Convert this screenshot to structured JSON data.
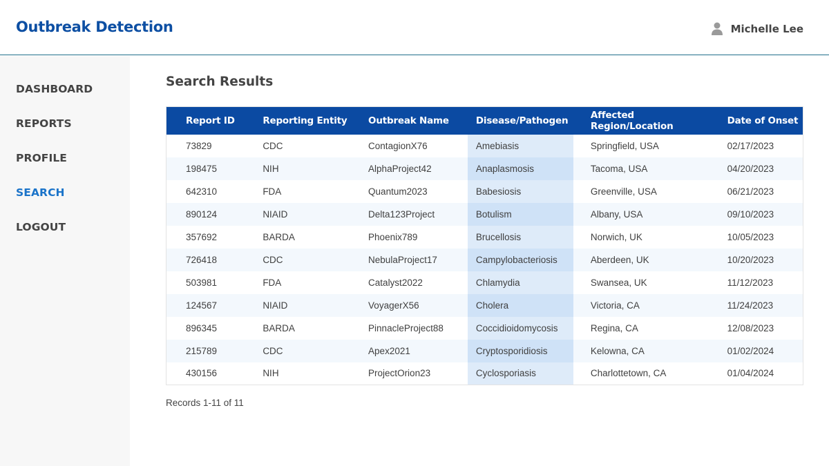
{
  "app": {
    "title": "Outbreak Detection"
  },
  "user": {
    "name": "Michelle Lee",
    "icon": "user-icon"
  },
  "nav": {
    "items": [
      {
        "label": "DASHBOARD",
        "active": false
      },
      {
        "label": "REPORTS",
        "active": false
      },
      {
        "label": "PROFILE",
        "active": false
      },
      {
        "label": "SEARCH",
        "active": true
      },
      {
        "label": "LOGOUT",
        "active": false
      }
    ]
  },
  "page": {
    "title": "Search Results"
  },
  "table": {
    "headers": [
      "Report ID",
      "Reporting Entity",
      "Outbreak Name",
      "Disease/Pathogen",
      "Affected Region/Location",
      "Date of Onset"
    ],
    "rows": [
      [
        "73829",
        "CDC",
        "ContagionX76",
        "Amebiasis",
        "Springfield, USA",
        "02/17/2023"
      ],
      [
        "198475",
        "NIH",
        "AlphaProject42",
        "Anaplasmosis",
        "Tacoma, USA",
        "04/20/2023"
      ],
      [
        "642310",
        "FDA",
        "Quantum2023",
        "Babesiosis",
        "Greenville, USA",
        "06/21/2023"
      ],
      [
        "890124",
        "NIAID",
        "Delta123Project",
        "Botulism",
        "Albany, USA",
        "09/10/2023"
      ],
      [
        "357692",
        "BARDA",
        "Phoenix789",
        "Brucellosis",
        "Norwich, UK",
        "10/05/2023"
      ],
      [
        "726418",
        "CDC",
        "NebulaProject17",
        "Campylobacteriosis",
        "Aberdeen, UK",
        "10/20/2023"
      ],
      [
        "503981",
        "FDA",
        "Catalyst2022",
        "Chlamydia",
        "Swansea, UK",
        "11/12/2023"
      ],
      [
        "124567",
        "NIAID",
        "VoyagerX56",
        "Cholera",
        "Victoria, CA",
        "11/24/2023"
      ],
      [
        "896345",
        "BARDA",
        "PinnacleProject88",
        "Coccidioidomycosis",
        "Regina, CA",
        "12/08/2023"
      ],
      [
        "215789",
        "CDC",
        "Apex2021",
        "Cryptosporidiosis",
        "Kelowna, CA",
        "01/02/2024"
      ],
      [
        "430156",
        "NIH",
        "ProjectOrion23",
        "Cyclosporiasis",
        "Charlottetown, CA",
        "01/04/2024"
      ]
    ]
  },
  "footer": {
    "records": "Records 1-11 of 11"
  },
  "colors": {
    "brand": "#0d4fa3",
    "header_row": "#0b4aa2",
    "active_nav": "#1a73c9",
    "highlight_column": "#deebf9"
  }
}
